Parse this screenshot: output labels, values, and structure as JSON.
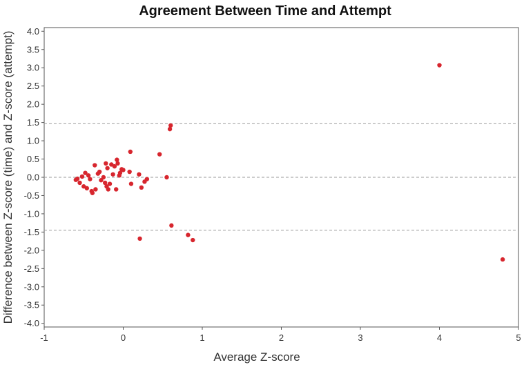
{
  "chart_data": {
    "type": "scatter",
    "title": "Agreement Between Time and Attempt",
    "xlabel": "Average Z-score",
    "ylabel": "Difference between Z-score (time) and Z-score (attempt)",
    "xlim": [
      -1,
      5
    ],
    "ylim": [
      -4.1,
      4.1
    ],
    "x_ticks": [
      -1,
      0,
      1,
      2,
      3,
      4,
      5
    ],
    "x_tick_labels": [
      "-1",
      "0",
      "1",
      "2",
      "3",
      "4",
      "5"
    ],
    "y_ticks": [
      4.0,
      3.5,
      3.0,
      2.5,
      2.0,
      1.5,
      1.0,
      0.5,
      0.0,
      -0.5,
      -1.0,
      -1.5,
      -2.0,
      -2.5,
      -3.0,
      -3.5,
      -4.0
    ],
    "y_tick_labels": [
      "4.0",
      "3.5",
      "3.0",
      "2.5",
      "2.0",
      "1.5",
      "1.0",
      "0.5",
      "0.0",
      "-0.5",
      "-1.0",
      "-1.5",
      "-2.0",
      "-2.5",
      "-3.0",
      "-3.5",
      "-4.0"
    ],
    "reference_lines": [
      1.47,
      0.0,
      -1.45
    ],
    "grid": false,
    "point_color": "#d7262e",
    "reference_line_color": "#999999",
    "points": [
      {
        "x": -0.6,
        "y": -0.07
      },
      {
        "x": -0.58,
        "y": -0.04
      },
      {
        "x": -0.55,
        "y": -0.15
      },
      {
        "x": -0.52,
        "y": 0.02
      },
      {
        "x": -0.5,
        "y": -0.25
      },
      {
        "x": -0.48,
        "y": 0.12
      },
      {
        "x": -0.46,
        "y": -0.3
      },
      {
        "x": -0.44,
        "y": 0.05
      },
      {
        "x": -0.42,
        "y": -0.05
      },
      {
        "x": -0.4,
        "y": -0.38
      },
      {
        "x": -0.39,
        "y": -0.43
      },
      {
        "x": -0.36,
        "y": 0.33
      },
      {
        "x": -0.35,
        "y": -0.33
      },
      {
        "x": -0.32,
        "y": 0.1
      },
      {
        "x": -0.3,
        "y": 0.15
      },
      {
        "x": -0.28,
        "y": -0.08
      },
      {
        "x": -0.25,
        "y": 0.0
      },
      {
        "x": -0.23,
        "y": -0.15
      },
      {
        "x": -0.22,
        "y": 0.38
      },
      {
        "x": -0.21,
        "y": -0.25
      },
      {
        "x": -0.2,
        "y": 0.25
      },
      {
        "x": -0.19,
        "y": -0.33
      },
      {
        "x": -0.17,
        "y": -0.18
      },
      {
        "x": -0.15,
        "y": 0.35
      },
      {
        "x": -0.13,
        "y": 0.08
      },
      {
        "x": -0.11,
        "y": 0.3
      },
      {
        "x": -0.09,
        "y": -0.33
      },
      {
        "x": -0.08,
        "y": 0.48
      },
      {
        "x": -0.07,
        "y": 0.38
      },
      {
        "x": -0.05,
        "y": 0.05
      },
      {
        "x": -0.04,
        "y": 0.12
      },
      {
        "x": -0.02,
        "y": 0.22
      },
      {
        "x": 0.0,
        "y": 0.2
      },
      {
        "x": 0.08,
        "y": 0.15
      },
      {
        "x": 0.09,
        "y": 0.7
      },
      {
        "x": 0.1,
        "y": -0.18
      },
      {
        "x": 0.2,
        "y": 0.08
      },
      {
        "x": 0.21,
        "y": -1.68
      },
      {
        "x": 0.23,
        "y": -0.28
      },
      {
        "x": 0.27,
        "y": -0.12
      },
      {
        "x": 0.3,
        "y": -0.05
      },
      {
        "x": 0.46,
        "y": 0.63
      },
      {
        "x": 0.55,
        "y": 0.0
      },
      {
        "x": 0.59,
        "y": 1.32
      },
      {
        "x": 0.6,
        "y": 1.42
      },
      {
        "x": 0.61,
        "y": -1.32
      },
      {
        "x": 0.82,
        "y": -1.58
      },
      {
        "x": 0.88,
        "y": -1.72
      },
      {
        "x": 4.0,
        "y": 3.07
      },
      {
        "x": 4.8,
        "y": -2.25
      }
    ]
  }
}
